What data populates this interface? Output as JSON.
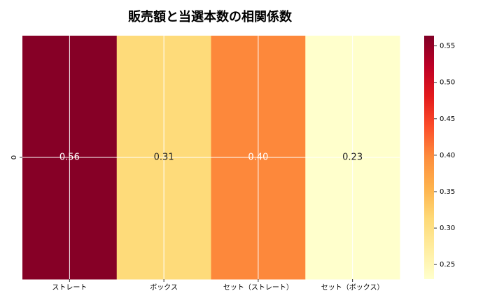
{
  "chart_data": {
    "type": "heatmap",
    "title": "販売額と当選本数の相関係数",
    "x_categories": [
      "ストレート",
      "ボックス",
      "セット（ストレート）",
      "セット（ボックス）"
    ],
    "y_categories": [
      "0"
    ],
    "values": [
      [
        0.56,
        0.31,
        0.4,
        0.23
      ]
    ],
    "colorscale": [
      "#ffffcc",
      "#ffeda0",
      "#fed976",
      "#feb24c",
      "#fd8d3c",
      "#fc4e2a",
      "#e31a1c",
      "#bd0026",
      "#800026"
    ],
    "clim": [
      0.23,
      0.564
    ],
    "cticks": [
      0.25,
      0.3,
      0.35,
      0.4,
      0.45,
      0.5,
      0.55
    ],
    "grid": true
  }
}
